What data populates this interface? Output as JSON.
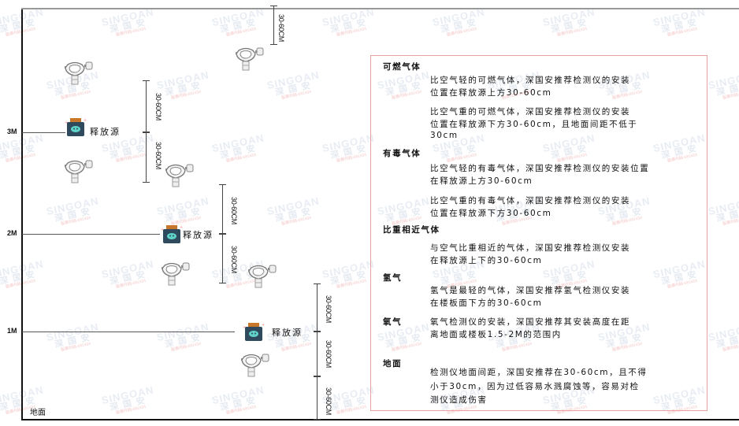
{
  "watermark": {
    "brand": "SINGOAN",
    "cn": "深国安",
    "sub": "股票代码:681434"
  },
  "axis": {
    "levels": [
      "3M",
      "2M",
      "1M"
    ],
    "ground_label": "地面"
  },
  "source_label": "释放源",
  "dimension_label": "30-60CM",
  "legend": {
    "sections": [
      {
        "title": "可燃气体",
        "paragraphs": [
          [
            "比空气轻的可燃气体，深国安推荐检测仪的安装",
            "位置在释放源上方30-60cm"
          ],
          [
            "比空气重的可燃气体，深国安推荐检测仪的安装",
            "位置在释放源下方30-60cm，且地面间距不低于",
            "30cm"
          ]
        ]
      },
      {
        "title": "有毒气体",
        "paragraphs": [
          [
            "比空气轻的有毒气体，深国安推荐检测仪的安装位置",
            "在释放源上方30-60cm"
          ],
          [
            "比空气重的有毒气体，深国安推荐检测仪的安装",
            "位置在释放源下方30-60cm"
          ]
        ]
      },
      {
        "title": "比重相近气体",
        "paragraphs": [
          [
            "与空气比重相近的气体，深国安推荐检测仪安装",
            "在释放源上下的30-60cm"
          ]
        ]
      },
      {
        "title": "氢气",
        "paragraphs": [
          [
            "氢气是最轻的气体，深国安推荐氢气检测仪安装",
            "在楼板面下方的30-60cm"
          ]
        ]
      },
      {
        "title": "氧气",
        "paragraphs": [
          [
            "氧气检测仪的安装，深国安推荐其安装高度在距",
            "离地面或楼板1.5-2M的范围内"
          ]
        ]
      },
      {
        "title": "地面",
        "paragraphs": [
          [
            "检测仪地面间距，深国安推荐在30-60cm，且不得",
            "小于30cm，因为过低容易水溅腐蚀等，容易对检",
            "测仪造成伤害"
          ]
        ]
      }
    ]
  },
  "colors": {
    "box_border": "#e9a0a0",
    "source_body": "#2f4a5c",
    "source_cap": "#c8772a",
    "source_face": "#5fd3c8"
  }
}
